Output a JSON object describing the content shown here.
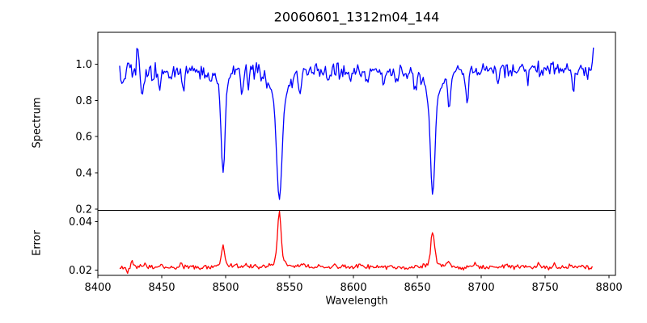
{
  "figure": {
    "title": "20060601_1312m04_144",
    "xlabel": "Wavelength",
    "background": "#ffffff",
    "text_color": "#000000"
  },
  "axes": {
    "xlim": [
      8400,
      8805
    ],
    "xticks": [
      8400,
      8450,
      8500,
      8550,
      8600,
      8650,
      8700,
      8750,
      8800
    ],
    "xtick_labels": [
      "8400",
      "8450",
      "8500",
      "8550",
      "8600",
      "8650",
      "8700",
      "8750",
      "8800"
    ]
  },
  "chart_data": [
    {
      "name": "spectrum",
      "type": "line",
      "ylabel": "Spectrum",
      "color": "#0000ff",
      "ylim": [
        0.194,
        1.175
      ],
      "yticks": [
        0.2,
        0.4,
        0.6,
        0.8,
        1.0
      ],
      "ytick_labels": [
        "0.2",
        "0.4",
        "0.6",
        "0.8",
        "1.0"
      ],
      "x_start": 8417,
      "x_end": 8788.5,
      "x_step": 0.9,
      "baseline": 0.965,
      "noise_amp": 0.055,
      "seed": 1312,
      "noise_scale_with_depth": true,
      "features": [
        {
          "center": 8419,
          "amp": -0.07,
          "width": 1.0
        },
        {
          "center": 8431,
          "amp": 0.16,
          "width": 0.7
        },
        {
          "center": 8435,
          "amp": -0.13,
          "width": 1.0
        },
        {
          "center": 8443,
          "amp": -0.06,
          "width": 0.9
        },
        {
          "center": 8448,
          "amp": -0.09,
          "width": 1.0
        },
        {
          "center": 8467,
          "amp": -0.11,
          "width": 1.1
        },
        {
          "center": 8488,
          "amp": -0.06,
          "width": 1.0
        },
        {
          "center": 8498,
          "amp": -0.46,
          "width": 1.5
        },
        {
          "center": 8498,
          "amp": -0.1,
          "width": 4.0
        },
        {
          "center": 8513,
          "amp": -0.13,
          "width": 1.0
        },
        {
          "center": 8518,
          "amp": -0.07,
          "width": 0.8
        },
        {
          "center": 8542,
          "amp": -0.55,
          "width": 2.0
        },
        {
          "center": 8542,
          "amp": -0.16,
          "width": 7.0
        },
        {
          "center": 8558,
          "amp": -0.12,
          "width": 1.0
        },
        {
          "center": 8581,
          "amp": -0.06,
          "width": 1.0
        },
        {
          "center": 8598,
          "amp": -0.06,
          "width": 1.0
        },
        {
          "center": 8611,
          "amp": -0.06,
          "width": 1.0
        },
        {
          "center": 8624,
          "amp": -0.07,
          "width": 1.0
        },
        {
          "center": 8634,
          "amp": -0.08,
          "width": 1.0
        },
        {
          "center": 8648,
          "amp": -0.09,
          "width": 1.1
        },
        {
          "center": 8662,
          "amp": -0.54,
          "width": 1.8
        },
        {
          "center": 8662,
          "amp": -0.14,
          "width": 6.0
        },
        {
          "center": 8675,
          "amp": -0.2,
          "width": 1.0
        },
        {
          "center": 8689,
          "amp": -0.2,
          "width": 1.0
        },
        {
          "center": 8713,
          "amp": -0.06,
          "width": 1.0
        },
        {
          "center": 8736,
          "amp": -0.07,
          "width": 1.0
        },
        {
          "center": 8772,
          "amp": -0.11,
          "width": 1.0
        },
        {
          "center": 8788,
          "amp": 0.18,
          "width": 0.8
        }
      ]
    },
    {
      "name": "error",
      "type": "line",
      "ylabel": "Error",
      "color": "#ff0000",
      "ylim": [
        0.0178,
        0.0446
      ],
      "yticks": [
        0.02,
        0.04
      ],
      "ytick_labels": [
        "0.02",
        "0.04"
      ],
      "x_start": 8417,
      "x_end": 8787.5,
      "x_step": 0.9,
      "baseline": 0.0212,
      "noise_amp": 0.0012,
      "seed": 144,
      "noise_scale_with_depth": false,
      "features": [
        {
          "center": 8423,
          "amp": -0.0018,
          "width": 1.0
        },
        {
          "center": 8427,
          "amp": 0.0028,
          "width": 0.9
        },
        {
          "center": 8436,
          "amp": 0.0012,
          "width": 0.9
        },
        {
          "center": 8450,
          "amp": 0.0012,
          "width": 0.8
        },
        {
          "center": 8465,
          "amp": 0.0016,
          "width": 0.8
        },
        {
          "center": 8498,
          "amp": 0.0075,
          "width": 1.2
        },
        {
          "center": 8498,
          "amp": 0.0012,
          "width": 4.0
        },
        {
          "center": 8508,
          "amp": 0.0013,
          "width": 0.9
        },
        {
          "center": 8516,
          "amp": 0.0016,
          "width": 0.9
        },
        {
          "center": 8523,
          "amp": 0.0012,
          "width": 0.9
        },
        {
          "center": 8542,
          "amp": 0.02,
          "width": 1.3
        },
        {
          "center": 8542,
          "amp": 0.0028,
          "width": 5.0
        },
        {
          "center": 8560,
          "amp": 0.0012,
          "width": 0.9
        },
        {
          "center": 8585,
          "amp": 0.0015,
          "width": 0.9
        },
        {
          "center": 8605,
          "amp": 0.0011,
          "width": 0.9
        },
        {
          "center": 8630,
          "amp": 0.001,
          "width": 0.9
        },
        {
          "center": 8662,
          "amp": 0.013,
          "width": 1.4
        },
        {
          "center": 8662,
          "amp": 0.0018,
          "width": 5.0
        },
        {
          "center": 8674,
          "amp": 0.0022,
          "width": 0.9
        },
        {
          "center": 8695,
          "amp": 0.0016,
          "width": 0.9
        },
        {
          "center": 8720,
          "amp": 0.001,
          "width": 0.9
        },
        {
          "center": 8745,
          "amp": 0.0016,
          "width": 0.8
        },
        {
          "center": 8757,
          "amp": 0.0024,
          "width": 0.8
        },
        {
          "center": 8770,
          "amp": 0.0016,
          "width": 0.9
        },
        {
          "center": 8789,
          "amp": -0.0012,
          "width": 1.5
        }
      ]
    }
  ]
}
